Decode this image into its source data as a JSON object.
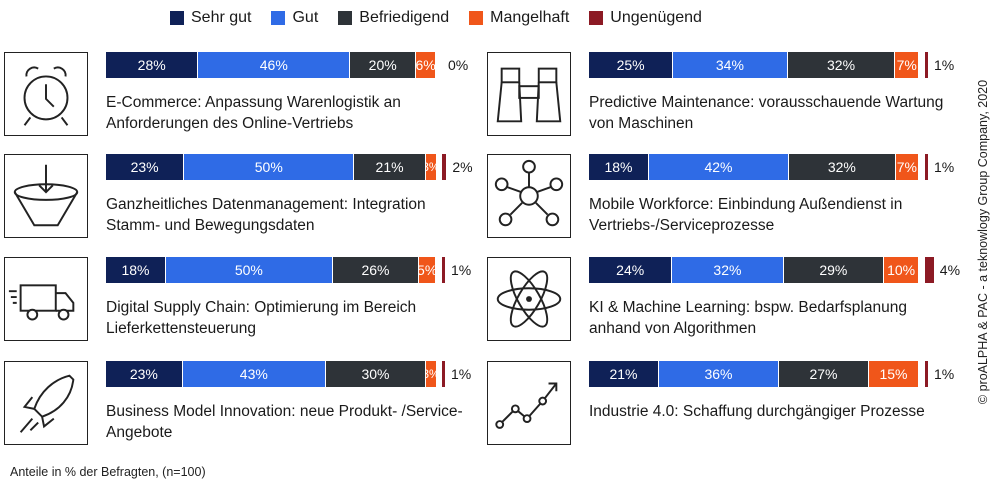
{
  "chart_data": {
    "type": "bar",
    "orientation": "horizontal-stacked-100",
    "legend_position": "top",
    "series": [
      {
        "name": "Sehr gut",
        "color": "#0f2157"
      },
      {
        "name": "Gut",
        "color": "#2f6be6"
      },
      {
        "name": "Befriedigend",
        "color": "#2e3338"
      },
      {
        "name": "Mangelhaft",
        "color": "#f0561a"
      },
      {
        "name": "Ungenügend",
        "color": "#8c1a24"
      }
    ],
    "items": [
      {
        "label": "E-Commerce: Anpassung Warenlogistik an Anforderungen des Online-Vertriebs",
        "icon": "alarm-clock-icon",
        "column": 0,
        "row": 0,
        "values": [
          28,
          46,
          20,
          6,
          0
        ],
        "value_labels": [
          "28%",
          "46%",
          "20%",
          "6%",
          "0%"
        ]
      },
      {
        "label": "Ganzheitliches Datenmanagement: Integration Stamm- und Bewegungsdaten",
        "icon": "funnel-icon",
        "column": 0,
        "row": 1,
        "values": [
          23,
          50,
          21,
          3,
          2
        ],
        "value_labels": [
          "23%",
          "50%",
          "21%",
          "3%",
          "2%"
        ]
      },
      {
        "label": "Digital Supply Chain: Optimierung im Bereich Lieferkettensteuerung",
        "icon": "delivery-truck-icon",
        "column": 0,
        "row": 2,
        "values": [
          18,
          50,
          26,
          5,
          1
        ],
        "value_labels": [
          "18%",
          "50%",
          "26%",
          "5%",
          "1%"
        ]
      },
      {
        "label": "Business Model Innovation: neue Produkt- /Service-Angebote",
        "icon": "rocket-icon",
        "column": 0,
        "row": 3,
        "values": [
          23,
          43,
          30,
          3,
          1
        ],
        "value_labels": [
          "23%",
          "43%",
          "30%",
          "3%",
          "1%"
        ]
      },
      {
        "label": "Predictive Maintenance: vorausschauende Wartung von Maschinen",
        "icon": "binoculars-icon",
        "column": 1,
        "row": 0,
        "values": [
          25,
          34,
          32,
          7,
          1
        ],
        "value_labels": [
          "25%",
          "34%",
          "32%",
          "7%",
          "1%"
        ]
      },
      {
        "label": "Mobile Workforce: Einbindung Außendienst in Vertriebs-/Serviceprozesse",
        "icon": "network-icon",
        "column": 1,
        "row": 1,
        "values": [
          18,
          42,
          32,
          7,
          1
        ],
        "value_labels": [
          "18%",
          "42%",
          "32%",
          "7%",
          "1%"
        ]
      },
      {
        "label": "KI & Machine Learning: bspw. Bedarfsplanung anhand von Algorithmen",
        "icon": "atom-icon",
        "column": 1,
        "row": 2,
        "values": [
          24,
          32,
          29,
          10,
          4
        ],
        "value_labels": [
          "24%",
          "32%",
          "29%",
          "10%",
          "4%"
        ]
      },
      {
        "label": "Industrie 4.0: Schaffung durchgängiger Prozesse",
        "icon": "trend-line-icon",
        "column": 1,
        "row": 3,
        "values": [
          21,
          36,
          27,
          15,
          1
        ],
        "value_labels": [
          "21%",
          "36%",
          "27%",
          "15%",
          "1%"
        ]
      }
    ]
  },
  "footnote": "Anteile in % der Befragten, (n=100)",
  "credit": "© proALPHA & PAC - a teknowlogy Group Company, 2020"
}
